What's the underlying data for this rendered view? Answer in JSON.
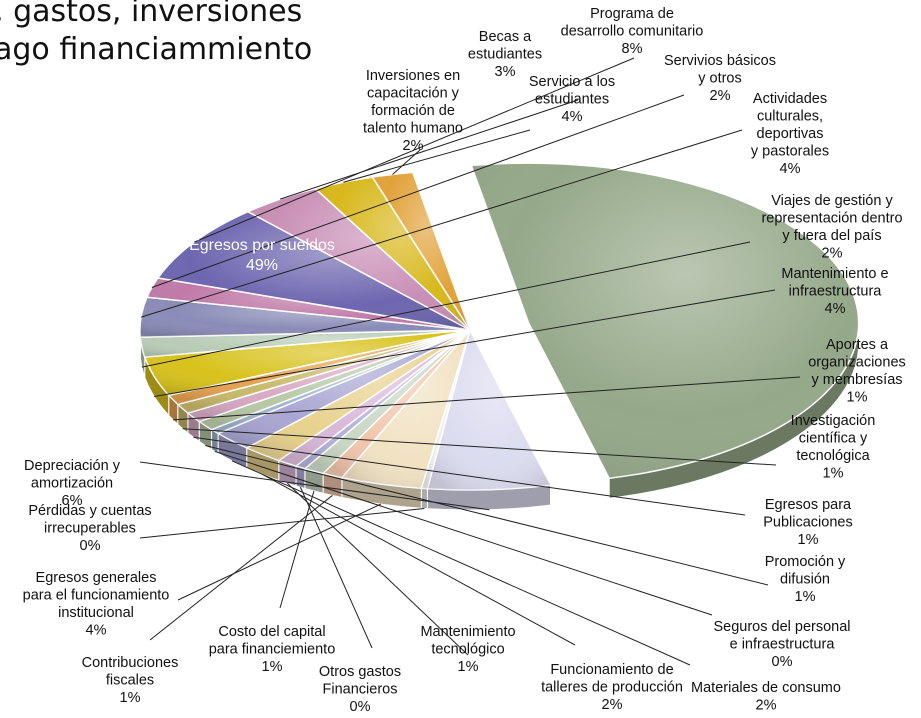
{
  "chart_data": {
    "type": "pie",
    "title_lines": [
      ", gastos, inversiones",
      "ago financiammiento"
    ],
    "slices": [
      {
        "label_lines": [
          "Egresos por sueldos",
          "49%"
        ],
        "value": 49,
        "color": "#95a889"
      },
      {
        "label_lines": [
          "Depreciación y",
          "amortización",
          "6%"
        ],
        "value": 6,
        "color": "#dcdcf0"
      },
      {
        "label_lines": [
          "Pérdidas y cuentas",
          "irrecuperables",
          "0%"
        ],
        "value": 0.3,
        "color": "#eeeeee"
      },
      {
        "label_lines": [
          "Egresos generales",
          "para el funcionamiento",
          "institucional",
          "4%"
        ],
        "value": 4,
        "color": "#f1e2c3"
      },
      {
        "label_lines": [
          "Contribuciones",
          "fiscales",
          "1%"
        ],
        "value": 1,
        "color": "#f2c6ad"
      },
      {
        "label_lines": [
          "Costo del capital",
          "para financiemiento",
          "1%"
        ],
        "value": 1,
        "color": "#c9d7c3"
      },
      {
        "label_lines": [
          "Otros gastos",
          "Financieros",
          "0%"
        ],
        "value": 0.5,
        "color": "#b4b2dc"
      },
      {
        "label_lines": [
          "Mantenimiento",
          "tecnológico",
          "1%"
        ],
        "value": 1,
        "color": "#d9b8d8"
      },
      {
        "label_lines": [
          "Funcionamiento de",
          "talleres de producción",
          "2%"
        ],
        "value": 2,
        "color": "#e8d28e"
      },
      {
        "label_lines": [
          "Materiales de consumo",
          "2%"
        ],
        "value": 2,
        "color": "#a9a6d3"
      },
      {
        "label_lines": [
          "Seguros del personal",
          "e infraestructura",
          "0%"
        ],
        "value": 0.5,
        "color": "#9fb8cf"
      },
      {
        "label_lines": [
          "Promoción y",
          "difusión",
          "1%"
        ],
        "value": 1,
        "color": "#b7c8a6"
      },
      {
        "label_lines": [
          "Egresos para",
          "Publicaciones",
          "1%"
        ],
        "value": 1,
        "color": "#d8a9c4"
      },
      {
        "label_lines": [
          "Investigación",
          "científica y",
          "tecnológica",
          "1%"
        ],
        "value": 1,
        "color": "#c8b96a"
      },
      {
        "label_lines": [
          "Aportes a",
          "organizaciones",
          "y membresías",
          "1%"
        ],
        "value": 1,
        "color": "#e6a24e"
      },
      {
        "label_lines": [
          "Mantenimiento e",
          "infraestructura",
          "4%"
        ],
        "value": 4,
        "color": "#d8c21c"
      },
      {
        "label_lines": [
          "Viajes de gestión y",
          "representación dentro",
          "y fuera del país",
          "2%"
        ],
        "value": 2,
        "color": "#b8ccb6"
      },
      {
        "label_lines": [
          "Actividades",
          "culturales,",
          "deportivas",
          "y pastorales",
          "4%"
        ],
        "value": 4,
        "color": "#8a8cb8"
      },
      {
        "label_lines": [
          "Servivios básicos",
          "y otros",
          "2%"
        ],
        "value": 2,
        "color": "#c07aa8"
      },
      {
        "label_lines": [
          "Programa de",
          "desarrollo comunitario",
          "8%"
        ],
        "value": 8,
        "color": "#6e66b0"
      },
      {
        "label_lines": [
          "Servicio a los",
          "estudiantes",
          "4%"
        ],
        "value": 4,
        "color": "#c98fb6"
      },
      {
        "label_lines": [
          "Becas a",
          "estudiantes",
          "3%"
        ],
        "value": 3,
        "color": "#d8b81c"
      },
      {
        "label_lines": [
          "Inversiones en",
          "capacitación y",
          "formación de",
          "talento humano",
          "2%"
        ],
        "value": 2,
        "color": "#e2a23a"
      }
    ]
  }
}
